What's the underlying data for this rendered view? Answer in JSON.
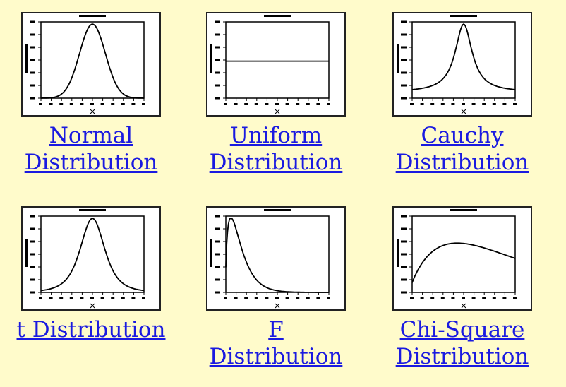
{
  "link_color": "#1a1ae0",
  "background_color": "#fffbcb",
  "items": [
    {
      "caption_line1": "Normal",
      "caption_line2": "Distribution",
      "thumbnail_icon": "normal-density-plot-icon",
      "curve": "normal"
    },
    {
      "caption_line1": "Uniform",
      "caption_line2": "Distribution",
      "thumbnail_icon": "uniform-density-plot-icon",
      "curve": "uniform"
    },
    {
      "caption_line1": "Cauchy",
      "caption_line2": "Distribution",
      "thumbnail_icon": "cauchy-density-plot-icon",
      "curve": "cauchy"
    },
    {
      "caption_line1": "t Distribution",
      "caption_line2": "",
      "thumbnail_icon": "t-density-plot-icon",
      "curve": "t"
    },
    {
      "caption_line1": "F",
      "caption_line2": "Distribution",
      "thumbnail_icon": "f-density-plot-icon",
      "curve": "f"
    },
    {
      "caption_line1": "Chi-Square",
      "caption_line2": "Distribution",
      "thumbnail_icon": "chi-square-density-plot-icon",
      "curve": "chisq"
    }
  ]
}
